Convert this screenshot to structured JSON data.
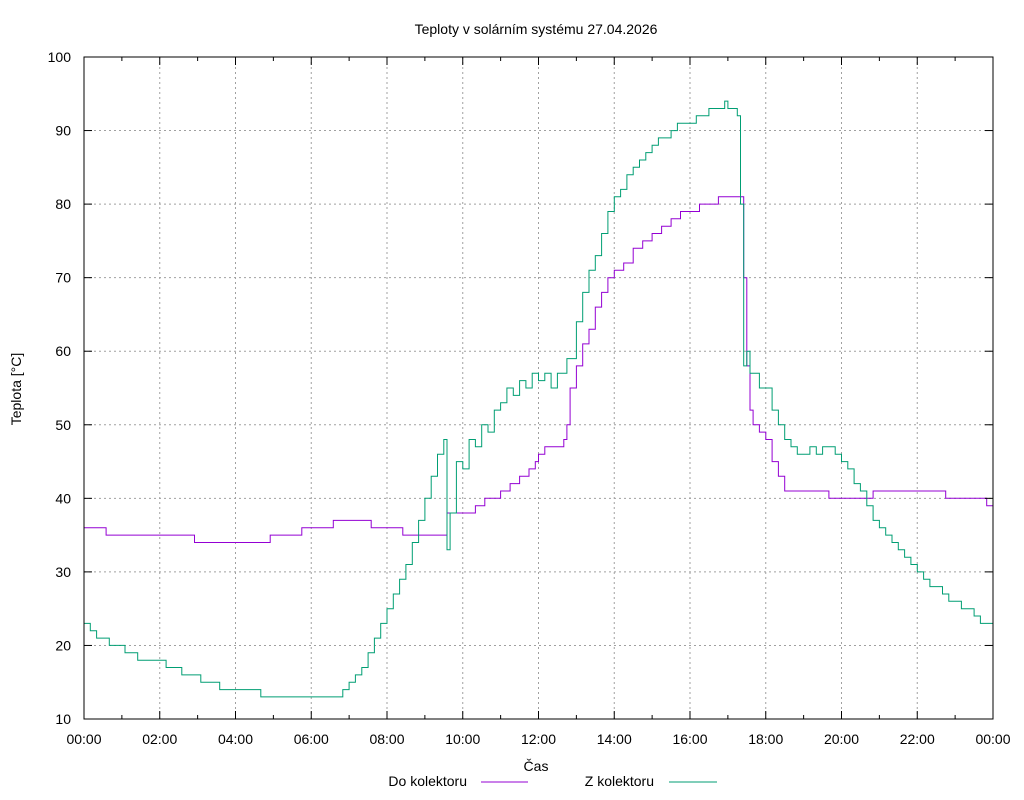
{
  "chart_data": {
    "type": "line",
    "title": "Teploty v solárním systému 27.04.2026",
    "xlabel": "Čas",
    "ylabel": "Teplota [°C]",
    "xlim": [
      "00:00",
      "24:00"
    ],
    "ylim": [
      10,
      100
    ],
    "x_ticks": [
      "00:00",
      "02:00",
      "04:00",
      "06:00",
      "08:00",
      "10:00",
      "12:00",
      "14:00",
      "16:00",
      "18:00",
      "20:00",
      "22:00",
      "00:00"
    ],
    "y_ticks": [
      10,
      20,
      30,
      40,
      50,
      60,
      70,
      80,
      90,
      100
    ],
    "grid": true,
    "legend_position": "bottom-center",
    "series": [
      {
        "name": "Do kolektoru",
        "color": "#9400d3",
        "points": [
          [
            "00:00",
            36
          ],
          [
            "00:30",
            36
          ],
          [
            "00:35",
            35
          ],
          [
            "02:00",
            35
          ],
          [
            "02:50",
            35
          ],
          [
            "02:55",
            34
          ],
          [
            "04:00",
            34
          ],
          [
            "04:50",
            34
          ],
          [
            "04:55",
            35
          ],
          [
            "05:40",
            35
          ],
          [
            "05:45",
            36
          ],
          [
            "06:30",
            36
          ],
          [
            "06:35",
            37
          ],
          [
            "07:00",
            37
          ],
          [
            "07:30",
            37
          ],
          [
            "07:35",
            36
          ],
          [
            "08:20",
            36
          ],
          [
            "08:25",
            35
          ],
          [
            "09:00",
            35
          ],
          [
            "09:30",
            35
          ],
          [
            "09:35",
            38
          ],
          [
            "10:00",
            38
          ],
          [
            "10:15",
            38
          ],
          [
            "10:20",
            39
          ],
          [
            "10:35",
            40
          ],
          [
            "11:00",
            41
          ],
          [
            "11:15",
            42
          ],
          [
            "11:30",
            43
          ],
          [
            "11:45",
            44
          ],
          [
            "11:55",
            45
          ],
          [
            "12:00",
            46
          ],
          [
            "12:10",
            47
          ],
          [
            "12:30",
            47
          ],
          [
            "12:40",
            48
          ],
          [
            "12:45",
            50
          ],
          [
            "12:50",
            55
          ],
          [
            "13:00",
            58
          ],
          [
            "13:10",
            61
          ],
          [
            "13:20",
            63
          ],
          [
            "13:30",
            66
          ],
          [
            "13:40",
            68
          ],
          [
            "13:50",
            70
          ],
          [
            "14:00",
            71
          ],
          [
            "14:15",
            72
          ],
          [
            "14:30",
            74
          ],
          [
            "14:45",
            75
          ],
          [
            "15:00",
            76
          ],
          [
            "15:15",
            77
          ],
          [
            "15:30",
            78
          ],
          [
            "15:45",
            79
          ],
          [
            "16:00",
            79
          ],
          [
            "16:15",
            80
          ],
          [
            "16:30",
            80
          ],
          [
            "16:45",
            81
          ],
          [
            "17:00",
            81
          ],
          [
            "17:20",
            81
          ],
          [
            "17:25",
            70
          ],
          [
            "17:30",
            58
          ],
          [
            "17:35",
            52
          ],
          [
            "17:40",
            50
          ],
          [
            "17:50",
            49
          ],
          [
            "18:00",
            48
          ],
          [
            "18:10",
            45
          ],
          [
            "18:20",
            43
          ],
          [
            "18:30",
            41
          ],
          [
            "19:00",
            41
          ],
          [
            "19:30",
            41
          ],
          [
            "19:40",
            40
          ],
          [
            "20:00",
            40
          ],
          [
            "20:30",
            40
          ],
          [
            "20:40",
            40
          ],
          [
            "20:50",
            41
          ],
          [
            "21:00",
            41
          ],
          [
            "22:00",
            41
          ],
          [
            "22:40",
            41
          ],
          [
            "22:45",
            40
          ],
          [
            "23:00",
            40
          ],
          [
            "23:45",
            40
          ],
          [
            "23:50",
            39
          ],
          [
            "24:00",
            39
          ]
        ]
      },
      {
        "name": "Z kolektoru",
        "color": "#009e73",
        "points": [
          [
            "00:00",
            23
          ],
          [
            "00:10",
            22
          ],
          [
            "00:20",
            21
          ],
          [
            "00:40",
            20
          ],
          [
            "01:00",
            20
          ],
          [
            "01:05",
            19
          ],
          [
            "01:20",
            19
          ],
          [
            "01:25",
            18
          ],
          [
            "02:00",
            18
          ],
          [
            "02:10",
            17
          ],
          [
            "02:30",
            17
          ],
          [
            "02:35",
            16
          ],
          [
            "03:00",
            16
          ],
          [
            "03:05",
            15
          ],
          [
            "03:30",
            15
          ],
          [
            "03:35",
            14
          ],
          [
            "04:00",
            14
          ],
          [
            "04:35",
            14
          ],
          [
            "04:40",
            13
          ],
          [
            "05:00",
            13
          ],
          [
            "06:00",
            13
          ],
          [
            "06:40",
            13
          ],
          [
            "06:45",
            13
          ],
          [
            "06:50",
            14
          ],
          [
            "07:00",
            15
          ],
          [
            "07:10",
            16
          ],
          [
            "07:20",
            17
          ],
          [
            "07:30",
            19
          ],
          [
            "07:40",
            21
          ],
          [
            "07:50",
            23
          ],
          [
            "08:00",
            25
          ],
          [
            "08:10",
            27
          ],
          [
            "08:20",
            29
          ],
          [
            "08:30",
            31
          ],
          [
            "08:40",
            34
          ],
          [
            "08:50",
            37
          ],
          [
            "09:00",
            40
          ],
          [
            "09:10",
            43
          ],
          [
            "09:20",
            46
          ],
          [
            "09:30",
            48
          ],
          [
            "09:35",
            33
          ],
          [
            "09:40",
            38
          ],
          [
            "09:50",
            45
          ],
          [
            "10:00",
            44
          ],
          [
            "10:10",
            48
          ],
          [
            "10:20",
            47
          ],
          [
            "10:30",
            50
          ],
          [
            "10:40",
            49
          ],
          [
            "10:50",
            52
          ],
          [
            "11:00",
            53
          ],
          [
            "11:10",
            55
          ],
          [
            "11:20",
            54
          ],
          [
            "11:30",
            56
          ],
          [
            "11:40",
            55
          ],
          [
            "11:50",
            57
          ],
          [
            "12:00",
            56
          ],
          [
            "12:10",
            57
          ],
          [
            "12:20",
            55
          ],
          [
            "12:30",
            57
          ],
          [
            "12:40",
            57
          ],
          [
            "12:45",
            59
          ],
          [
            "13:00",
            64
          ],
          [
            "13:10",
            68
          ],
          [
            "13:20",
            71
          ],
          [
            "13:30",
            73
          ],
          [
            "13:40",
            76
          ],
          [
            "13:50",
            79
          ],
          [
            "14:00",
            81
          ],
          [
            "14:10",
            82
          ],
          [
            "14:20",
            84
          ],
          [
            "14:30",
            85
          ],
          [
            "14:40",
            86
          ],
          [
            "14:50",
            87
          ],
          [
            "15:00",
            88
          ],
          [
            "15:10",
            89
          ],
          [
            "15:20",
            89
          ],
          [
            "15:30",
            90
          ],
          [
            "15:40",
            91
          ],
          [
            "16:00",
            91
          ],
          [
            "16:10",
            92
          ],
          [
            "16:30",
            93
          ],
          [
            "16:50",
            93
          ],
          [
            "16:55",
            94
          ],
          [
            "17:00",
            93
          ],
          [
            "17:15",
            92
          ],
          [
            "17:20",
            80
          ],
          [
            "17:25",
            58
          ],
          [
            "17:30",
            60
          ],
          [
            "17:35",
            57
          ],
          [
            "17:45",
            57
          ],
          [
            "17:50",
            55
          ],
          [
            "18:00",
            55
          ],
          [
            "18:10",
            52
          ],
          [
            "18:20",
            50
          ],
          [
            "18:30",
            48
          ],
          [
            "18:40",
            47
          ],
          [
            "18:50",
            46
          ],
          [
            "19:00",
            46
          ],
          [
            "19:10",
            47
          ],
          [
            "19:20",
            46
          ],
          [
            "19:30",
            47
          ],
          [
            "19:40",
            47
          ],
          [
            "19:50",
            46
          ],
          [
            "20:00",
            45
          ],
          [
            "20:10",
            44
          ],
          [
            "20:20",
            42
          ],
          [
            "20:30",
            41
          ],
          [
            "20:40",
            39
          ],
          [
            "20:50",
            37
          ],
          [
            "21:00",
            36
          ],
          [
            "21:10",
            35
          ],
          [
            "21:20",
            34
          ],
          [
            "21:30",
            33
          ],
          [
            "21:40",
            32
          ],
          [
            "21:50",
            31
          ],
          [
            "22:00",
            30
          ],
          [
            "22:10",
            29
          ],
          [
            "22:20",
            28
          ],
          [
            "22:30",
            28
          ],
          [
            "22:40",
            27
          ],
          [
            "22:50",
            26
          ],
          [
            "23:00",
            26
          ],
          [
            "23:10",
            25
          ],
          [
            "23:20",
            25
          ],
          [
            "23:30",
            24
          ],
          [
            "23:40",
            23
          ],
          [
            "24:00",
            23
          ]
        ]
      }
    ]
  }
}
